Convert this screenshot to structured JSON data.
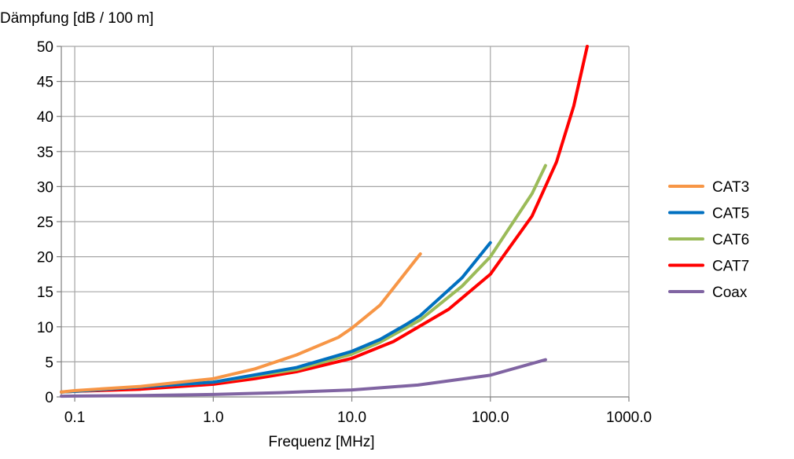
{
  "chart_data": {
    "type": "line",
    "title": "",
    "xlabel": "Frequenz [MHz]",
    "ylabel": "Dämpfung [dB / 100 m]",
    "x_scale": "log",
    "xlim": [
      0.08,
      1000
    ],
    "ylim": [
      0,
      50
    ],
    "x_ticks": [
      0.1,
      1.0,
      10.0,
      100.0,
      1000.0
    ],
    "x_tick_labels": [
      "0.1",
      "1.0",
      "10.0",
      "100.0",
      "1000.0"
    ],
    "y_ticks": [
      0,
      5,
      10,
      15,
      20,
      25,
      30,
      35,
      40,
      45,
      50
    ],
    "y_tick_labels": [
      "0",
      "5",
      "10",
      "15",
      "20",
      "25",
      "30",
      "35",
      "40",
      "45",
      "50"
    ],
    "grid": true,
    "legend_position": "right",
    "series": [
      {
        "name": "CAT3",
        "color": "#f79646",
        "points": [
          [
            0.08,
            0.7
          ],
          [
            0.1,
            0.9
          ],
          [
            0.3,
            1.5
          ],
          [
            1.0,
            2.6
          ],
          [
            2.0,
            4.0
          ],
          [
            4.0,
            6.0
          ],
          [
            8.0,
            8.5
          ],
          [
            10.0,
            9.8
          ],
          [
            16.0,
            13.1
          ],
          [
            31.25,
            20.4
          ]
        ]
      },
      {
        "name": "CAT5",
        "color": "#0070c0",
        "points": [
          [
            0.08,
            0.7
          ],
          [
            0.1,
            0.8
          ],
          [
            1.0,
            2.1
          ],
          [
            4.0,
            4.2
          ],
          [
            10.0,
            6.5
          ],
          [
            16.0,
            8.2
          ],
          [
            25.0,
            10.4
          ],
          [
            31.25,
            11.6
          ],
          [
            62.5,
            17.0
          ],
          [
            100.0,
            22.0
          ]
        ]
      },
      {
        "name": "CAT6",
        "color": "#9bbb59",
        "points": [
          [
            0.08,
            0.7
          ],
          [
            0.1,
            0.8
          ],
          [
            1.0,
            2.1
          ],
          [
            4.0,
            3.9
          ],
          [
            10.0,
            6.1
          ],
          [
            16.0,
            7.8
          ],
          [
            31.25,
            11.0
          ],
          [
            62.5,
            15.8
          ],
          [
            100.0,
            20.0
          ],
          [
            200.0,
            29.0
          ],
          [
            250.0,
            33.0
          ]
        ]
      },
      {
        "name": "CAT7",
        "color": "#ff0000",
        "points": [
          [
            0.08,
            0.7
          ],
          [
            0.1,
            0.8
          ],
          [
            0.3,
            1.1
          ],
          [
            1.0,
            1.8
          ],
          [
            2.0,
            2.6
          ],
          [
            4.0,
            3.6
          ],
          [
            10.0,
            5.5
          ],
          [
            20.0,
            7.9
          ],
          [
            50.0,
            12.5
          ],
          [
            100.0,
            17.5
          ],
          [
            200.0,
            25.8
          ],
          [
            300.0,
            33.5
          ],
          [
            400.0,
            41.5
          ],
          [
            500.0,
            50.0
          ]
        ]
      },
      {
        "name": "Coax",
        "color": "#8064a2",
        "points": [
          [
            0.08,
            0.1
          ],
          [
            0.1,
            0.12
          ],
          [
            0.3,
            0.2
          ],
          [
            1.0,
            0.35
          ],
          [
            3.0,
            0.6
          ],
          [
            10.0,
            1.0
          ],
          [
            30.0,
            1.7
          ],
          [
            100.0,
            3.1
          ],
          [
            250.0,
            5.3
          ]
        ]
      }
    ]
  }
}
